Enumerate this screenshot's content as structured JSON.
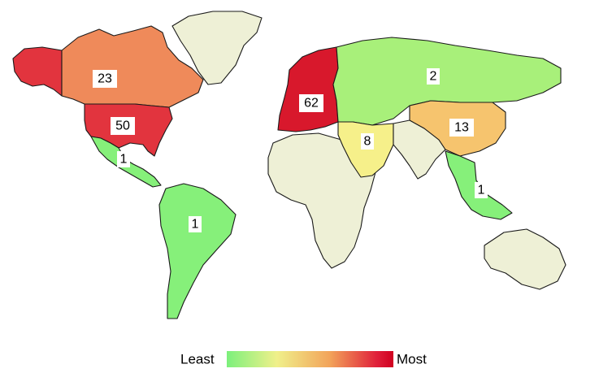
{
  "legend": {
    "low_label": "Least",
    "high_label": "Most",
    "gradient_colors": [
      "#7cf07c",
      "#f0f08a",
      "#f2a35a",
      "#e0203a",
      "#d00020"
    ]
  },
  "regions": [
    {
      "id": "alaska",
      "value": "",
      "color": "#e2343e"
    },
    {
      "id": "canada",
      "value": "23",
      "color": "#ef8a5a"
    },
    {
      "id": "greenland",
      "value": "",
      "color": "#eef0d6"
    },
    {
      "id": "united-states",
      "value": "50",
      "color": "#e2343e"
    },
    {
      "id": "mexico-central-america",
      "value": "1",
      "color": "#86f07a"
    },
    {
      "id": "south-america",
      "value": "1",
      "color": "#86f07a"
    },
    {
      "id": "europe",
      "value": "62",
      "color": "#d8182c"
    },
    {
      "id": "russia-central-asia",
      "value": "2",
      "color": "#a8f07a"
    },
    {
      "id": "middle-east",
      "value": "8",
      "color": "#f6f08a"
    },
    {
      "id": "china",
      "value": "13",
      "color": "#f6c46e"
    },
    {
      "id": "africa",
      "value": "",
      "color": "#eef0d6"
    },
    {
      "id": "south-asia",
      "value": "",
      "color": "#eef0d6"
    },
    {
      "id": "southeast-asia",
      "value": "1",
      "color": "#86f07a"
    },
    {
      "id": "australia",
      "value": "",
      "color": "#eef0d6"
    }
  ]
}
